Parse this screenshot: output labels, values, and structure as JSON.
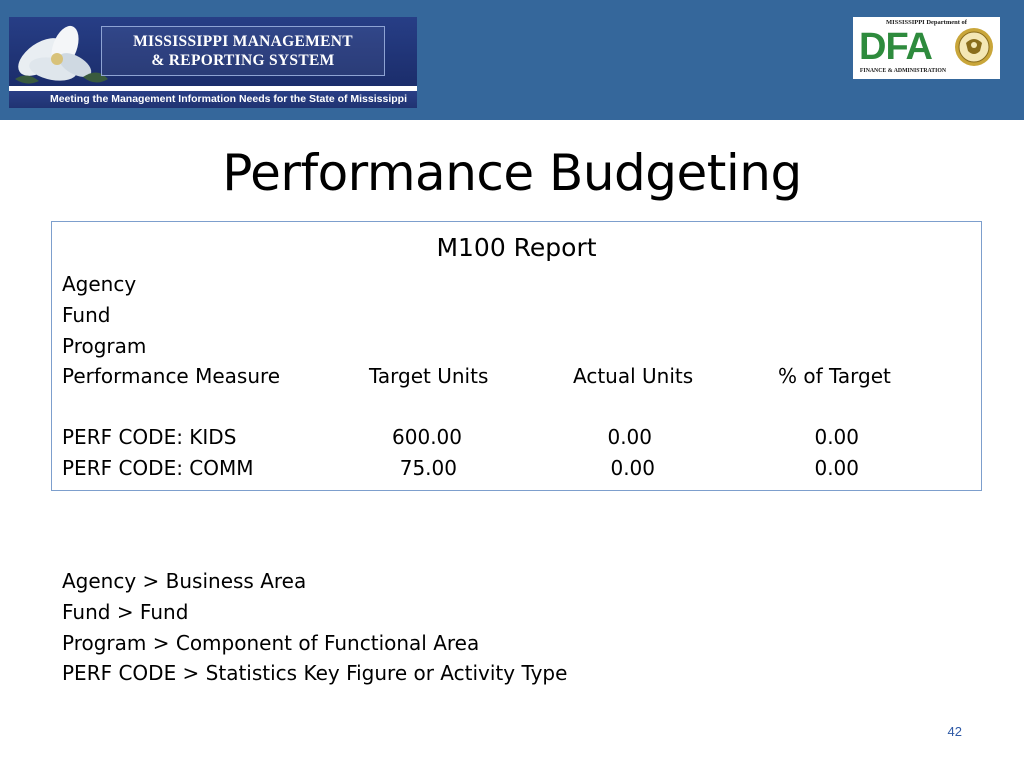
{
  "header": {
    "mmrs_title_line1": "MISSISSIPPI MANAGEMENT",
    "mmrs_title_line2": "& REPORTING SYSTEM",
    "mmrs_tagline": "Meeting the Management Information Needs for the State of Mississippi",
    "dfa_top_text": "MISSISSIPPI Department of",
    "dfa_letters": "DFA",
    "dfa_bottom_text": "FINANCE & ADMINISTRATION",
    "band_color": "#35679b"
  },
  "title": "Performance Budgeting",
  "report": {
    "title": "M100 Report",
    "labels": [
      "Agency",
      "Fund",
      "Program"
    ],
    "columns": {
      "measure": "Performance Measure",
      "target": "Target Units",
      "actual": "Actual Units",
      "pct": "% of Target"
    },
    "rows": [
      {
        "measure": "PERF CODE: KIDS",
        "target": "600.00",
        "actual": "0.00",
        "pct": "0.00"
      },
      {
        "measure": "PERF CODE: COMM",
        "target": "75.00",
        "actual": "0.00",
        "pct": "0.00"
      }
    ]
  },
  "mappings": [
    "Agency > Business Area",
    "Fund > Fund",
    "Program > Component of Functional Area",
    "PERF CODE > Statistics Key Figure or Activity Type"
  ],
  "slide_number": "42"
}
